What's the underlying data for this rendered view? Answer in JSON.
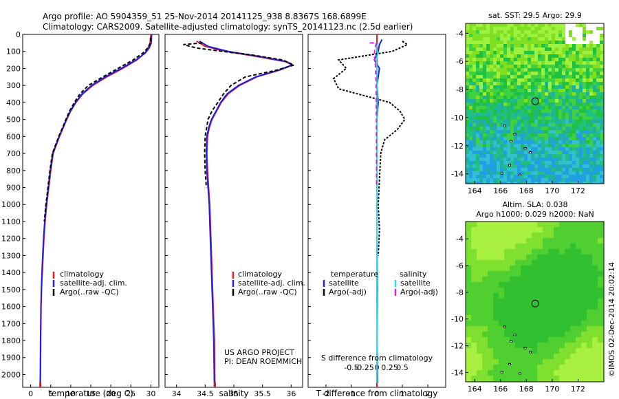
{
  "header": {
    "line1": "Argo profile: AO 5904359_51 25-Nov-2014 20141125_938 8.8367S 168.6899E",
    "line2": "Climatology: CARS2009. Satellite-adjusted climatology: synTS_20141123.nc (2.5d earlier)"
  },
  "colors": {
    "climatology": "#e41a1c",
    "satellite": "#1f1fdc",
    "argo": "#000000",
    "salinity_satellite": "#22e0f0",
    "salinity_argo": "#e020e0"
  },
  "chart_data": [
    {
      "type": "line",
      "name": "temperature-profile",
      "xlabel": "temperature (deg C)",
      "ylabel": "",
      "xlim": [
        -2,
        32
      ],
      "ylim": [
        2075,
        0
      ],
      "xticks": [
        0,
        5,
        10,
        15,
        20,
        25,
        30
      ],
      "yticks": [
        0,
        100,
        200,
        300,
        400,
        500,
        600,
        700,
        800,
        900,
        1000,
        1100,
        1200,
        1300,
        1400,
        1500,
        1600,
        1700,
        1800,
        1900,
        2000
      ],
      "legend": [
        "climatology",
        "satellite-adj. clim.",
        "Argo(..raw -QC)"
      ],
      "legend_position": "lower-middle",
      "series": [
        {
          "name": "climatology",
          "color_key": "climatology",
          "dash": "",
          "x": [
            30,
            29.8,
            29.3,
            28.5,
            26.5,
            23,
            19,
            15.5,
            13,
            11.3,
            10,
            9,
            8.1,
            7.2,
            6.4,
            5.6,
            5,
            4.5,
            4,
            3.6,
            3.3,
            3.1,
            2.9,
            2.7,
            2.6,
            2.5,
            2.45,
            2.4
          ],
          "y": [
            0,
            50,
            80,
            110,
            150,
            200,
            250,
            300,
            350,
            400,
            450,
            500,
            550,
            600,
            650,
            700,
            800,
            900,
            1000,
            1100,
            1200,
            1300,
            1400,
            1500,
            1600,
            1800,
            2000,
            2075
          ]
        },
        {
          "name": "satellite-adj. clim.",
          "color_key": "satellite",
          "dash": "",
          "x": [
            30.2,
            30.1,
            29.6,
            28.6,
            26.3,
            22.6,
            18.6,
            15.2,
            12.8,
            11.2,
            9.9,
            8.9,
            8,
            7.1,
            6.3,
            5.5,
            4.9,
            4.4,
            3.9,
            3.5,
            3.2,
            3,
            2.8,
            2.65,
            2.55,
            2.45,
            2.4,
            2.35
          ],
          "y": [
            0,
            50,
            80,
            110,
            150,
            200,
            250,
            300,
            350,
            400,
            450,
            500,
            550,
            600,
            650,
            700,
            800,
            900,
            1000,
            1100,
            1200,
            1300,
            1400,
            1500,
            1600,
            1800,
            2000,
            2075
          ]
        },
        {
          "name": "Argo(..raw -QC)",
          "color_key": "argo",
          "dash": "5,3",
          "x": [
            29.9,
            29.9,
            29.2,
            28,
            25.6,
            21.8,
            18,
            14.4,
            12.3,
            10.9,
            9.7,
            8.8,
            7.9,
            7,
            6.2,
            5.4,
            4.8,
            4.3,
            3.8,
            3.4
          ],
          "y": [
            20,
            50,
            80,
            110,
            150,
            200,
            250,
            300,
            350,
            400,
            450,
            500,
            550,
            600,
            650,
            700,
            800,
            900,
            1000,
            1100
          ]
        }
      ]
    },
    {
      "type": "line",
      "name": "salinity-profile",
      "xlabel": "salinity",
      "xlim": [
        33.8,
        36.2
      ],
      "ylim": [
        2075,
        0
      ],
      "xticks": [
        34,
        34.5,
        35,
        35.5,
        36
      ],
      "xtick_labels": [
        "34",
        "34.5",
        "35",
        "35.5",
        "36"
      ],
      "legend": [
        "climatology",
        "satellite-adj. clim.",
        "Argo(..raw -QC)"
      ],
      "legend_position": "lower-right",
      "annotation": [
        "US ARGO PROJECT",
        "PI: DEAN ROEMMICH"
      ],
      "series": [
        {
          "name": "climatology",
          "color_key": "climatology",
          "dash": "",
          "x": [
            34.35,
            34.5,
            34.85,
            35.4,
            35.9,
            36.02,
            35.8,
            35.4,
            35.1,
            34.9,
            34.78,
            34.7,
            34.62,
            34.57,
            34.54,
            34.53,
            34.54,
            34.56,
            34.58,
            34.6,
            34.62,
            34.64,
            34.66,
            34.67
          ],
          "y": [
            40,
            70,
            100,
            130,
            160,
            180,
            210,
            250,
            300,
            350,
            400,
            450,
            500,
            550,
            600,
            700,
            800,
            900,
            1000,
            1200,
            1400,
            1600,
            1800,
            2075
          ]
        },
        {
          "name": "satellite-adj. clim.",
          "color_key": "satellite",
          "dash": "",
          "x": [
            34.4,
            34.55,
            34.9,
            35.45,
            35.92,
            36.02,
            35.78,
            35.38,
            35.08,
            34.88,
            34.77,
            34.69,
            34.61,
            34.56,
            34.53,
            34.52,
            34.53,
            34.55,
            34.57,
            34.59,
            34.61,
            34.63,
            34.65,
            34.66
          ],
          "y": [
            40,
            70,
            100,
            130,
            160,
            180,
            210,
            250,
            300,
            350,
            400,
            450,
            500,
            550,
            600,
            700,
            800,
            900,
            1000,
            1200,
            1400,
            1600,
            1800,
            2075
          ]
        },
        {
          "name": "Argo(..raw -QC)",
          "color_key": "argo",
          "dash": "5,3",
          "x": [
            34.45,
            34.12,
            34.35,
            34.8,
            35.3,
            35.85,
            36.05,
            35.75,
            35.2,
            34.95,
            34.82,
            34.72,
            34.62,
            34.55,
            34.5,
            34.49,
            34.5,
            34.52
          ],
          "y": [
            50,
            60,
            80,
            100,
            120,
            150,
            180,
            210,
            250,
            300,
            350,
            400,
            450,
            500,
            600,
            700,
            800,
            900
          ]
        }
      ]
    },
    {
      "type": "line",
      "name": "difference-from-climatology",
      "xlabel": "T difference from climatology",
      "xlabel_top": "S difference from climatology",
      "xlim": [
        -2.7,
        2.7
      ],
      "ylim": [
        2075,
        0
      ],
      "xticks": [
        -2,
        -1,
        0,
        1,
        2
      ],
      "xtick_labels": [
        "-2",
        "-1",
        "0",
        "1",
        "2"
      ],
      "s_ticks": [
        -0.5,
        -0.25,
        0,
        0.25,
        0.5
      ],
      "s_tick_labels": [
        "-0.5",
        "-0.25",
        "0",
        "0.25",
        "0.5"
      ],
      "s_scale": 2,
      "legend_groups": [
        {
          "title": "temperature",
          "items": [
            "satellite",
            "Argo(-adj)"
          ]
        },
        {
          "title": "salinity",
          "items": [
            "satellite",
            "Argo(-adj)"
          ]
        }
      ],
      "legend_position": "lower-middle",
      "series": [
        {
          "name": "temperature satellite",
          "color_key": "satellite",
          "dash": "",
          "x": [
            0.2,
            0.1,
            0.05,
            -0.1,
            0.1,
            0,
            0.05,
            0,
            0,
            0,
            0,
            0.02,
            0,
            0.03
          ],
          "y": [
            30,
            60,
            100,
            150,
            200,
            300,
            400,
            500,
            700,
            900,
            1200,
            1500,
            1800,
            2050
          ]
        },
        {
          "name": "temperature Argo(-adj)",
          "color_key": "argo",
          "dash": "3,2",
          "x": [
            1,
            1.2,
            0.6,
            -1.5,
            -1.2,
            -1.7,
            -1.5,
            0.5,
            0.9,
            1.1,
            0.8,
            0.3,
            0.15,
            0.1,
            0.05,
            0.1,
            0.05
          ],
          "y": [
            40,
            60,
            100,
            150,
            200,
            260,
            320,
            400,
            450,
            500,
            560,
            620,
            700,
            850,
            1000,
            1150,
            1300
          ]
        },
        {
          "name": "salinity satellite",
          "color_key": "salinity_satellite",
          "dash": "",
          "x": [
            0.05,
            -0.03,
            0.04,
            -0.02,
            0,
            0,
            0,
            0,
            0,
            0
          ],
          "y": [
            50,
            80,
            110,
            150,
            200,
            300,
            500,
            800,
            1200,
            2050
          ]
        },
        {
          "name": "salinity Argo(-adj)",
          "color_key": "salinity_argo",
          "dash": "6,4",
          "x": [
            -0.28,
            -0.02,
            -0.08,
            -0.1,
            -0.06,
            -0.04,
            -0.03,
            -0.02,
            -0.01
          ],
          "y": [
            50,
            50,
            80,
            120,
            180,
            250,
            300,
            500,
            900
          ]
        }
      ]
    },
    {
      "type": "heatmap",
      "name": "sst-map",
      "title": "sat. SST: 29.5 Argo: 29.9",
      "xlim": [
        163.3,
        174
      ],
      "ylim": [
        -14.7,
        -3.3
      ],
      "xticks": [
        164,
        166,
        168,
        170,
        172
      ],
      "yticks": [
        -4,
        -6,
        -8,
        -10,
        -12,
        -14
      ],
      "marker": {
        "lon": 168.69,
        "lat": -8.84
      }
    },
    {
      "type": "heatmap",
      "name": "sla-map",
      "title": "Altim. SLA: 0.038",
      "subtitle": "Argo h1000: 0.029 h2000: NaN",
      "xlim": [
        163.3,
        174
      ],
      "ylim": [
        -14.7,
        -2.7
      ],
      "xticks": [
        164,
        166,
        168,
        170,
        172
      ],
      "yticks": [
        -4,
        -6,
        -8,
        -10,
        -12,
        -14
      ],
      "marker": {
        "lon": 168.69,
        "lat": -8.84
      }
    }
  ],
  "credit": "©IMOS 02-Dec-2014 20:02:14"
}
